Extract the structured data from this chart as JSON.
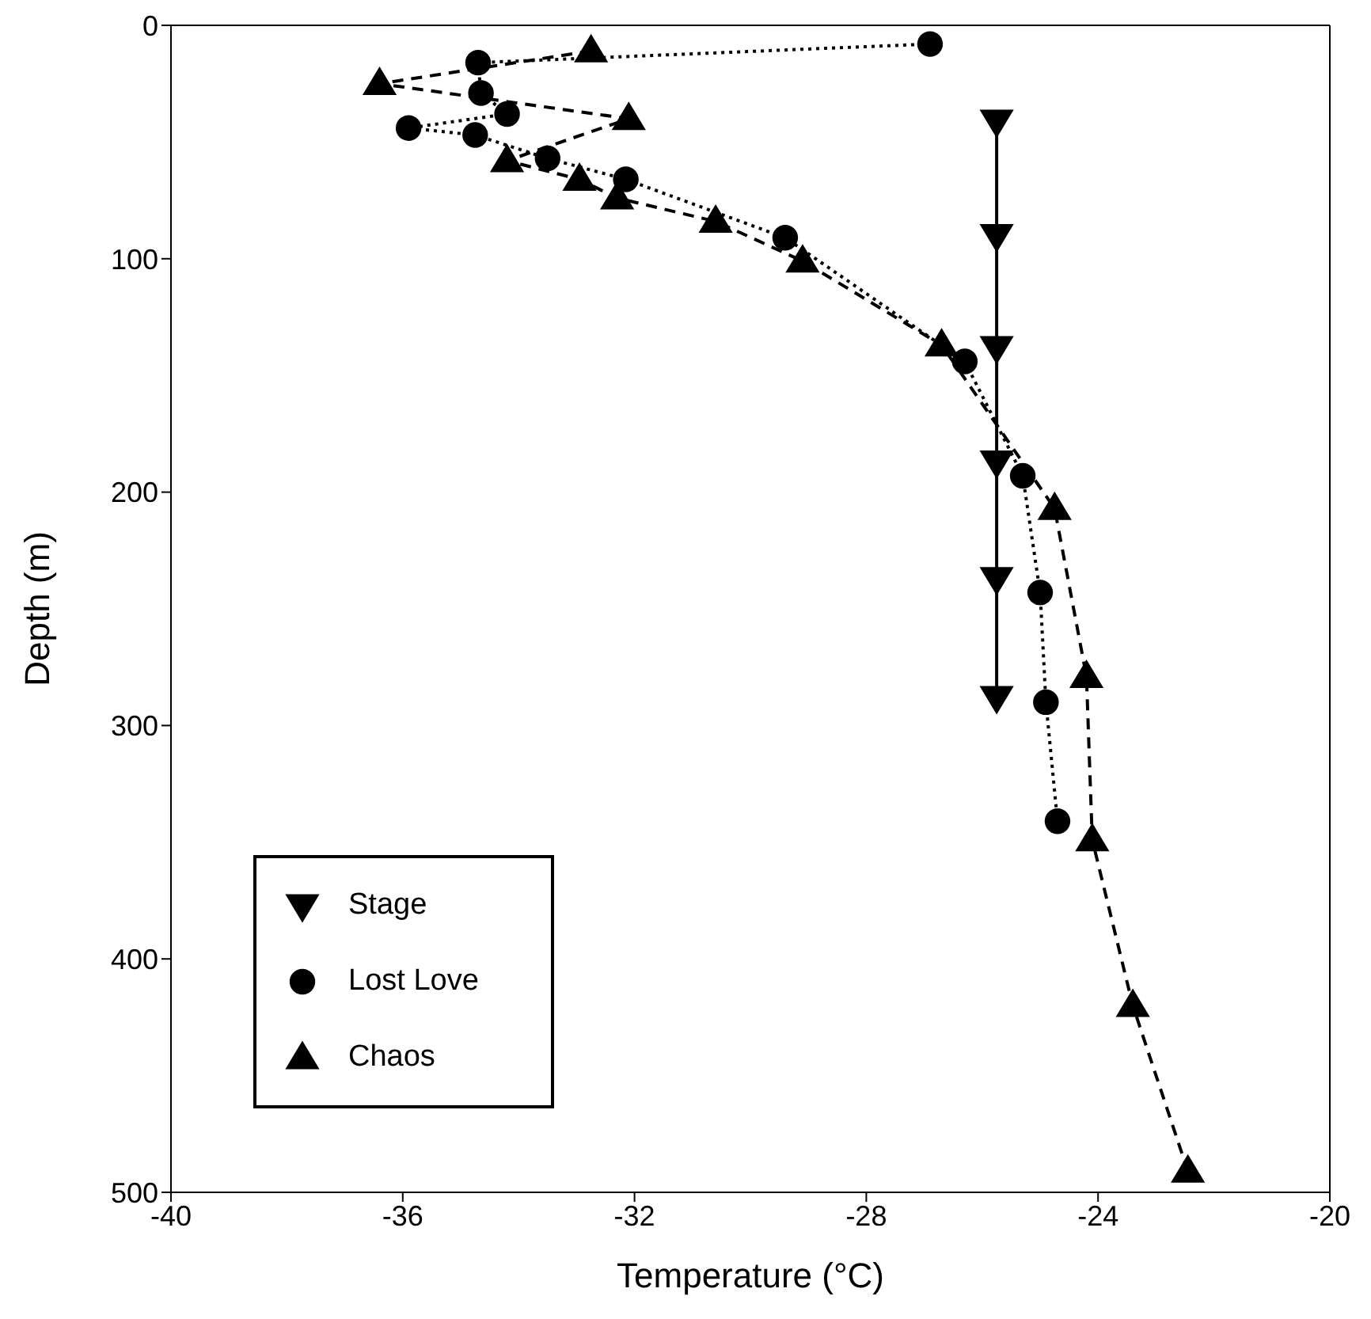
{
  "chart_data": {
    "type": "line",
    "xlabel": "Temperature (°C)",
    "ylabel": "Depth (m)",
    "xlim": [
      -40,
      -20
    ],
    "xticks": [
      -40,
      -36,
      -32,
      -28,
      -24,
      -20
    ],
    "ylim": [
      500,
      0
    ],
    "yticks": [
      0,
      100,
      200,
      300,
      400,
      500
    ],
    "grid": false,
    "legend": "bottom left",
    "series": [
      {
        "name": "Stage",
        "color": "#000000",
        "marker": "triangle-down",
        "line_style": "solid",
        "x": [
          -25.75,
          -25.75,
          -25.75,
          -25.75,
          -25.75,
          -25.75
        ],
        "values": [
          41,
          90,
          138,
          187,
          237,
          288
        ]
      },
      {
        "name": "Lost Love",
        "color": "#000000",
        "marker": "circle",
        "line_style": "dotted",
        "x": [
          -26.9,
          -34.7,
          -34.65,
          -34.2,
          -35.9,
          -34.75,
          -33.5,
          -32.15,
          -29.4,
          -26.3,
          -25.3,
          -25.0,
          -24.9,
          -24.7
        ],
        "values": [
          8,
          16,
          29,
          38,
          44,
          47,
          57,
          66,
          91,
          144,
          193,
          243,
          290,
          341
        ]
      },
      {
        "name": "Chaos",
        "color": "#000000",
        "marker": "triangle",
        "line_style": "dashed",
        "x": [
          -32.75,
          -36.4,
          -32.1,
          -34.2,
          -32.95,
          -32.3,
          -30.6,
          -29.1,
          -26.7,
          -24.75,
          -24.2,
          -24.1,
          -23.4,
          -22.45
        ],
        "values": [
          11,
          25,
          40,
          58,
          66,
          74,
          84,
          101,
          137,
          207,
          279,
          349,
          420,
          491
        ]
      }
    ]
  }
}
